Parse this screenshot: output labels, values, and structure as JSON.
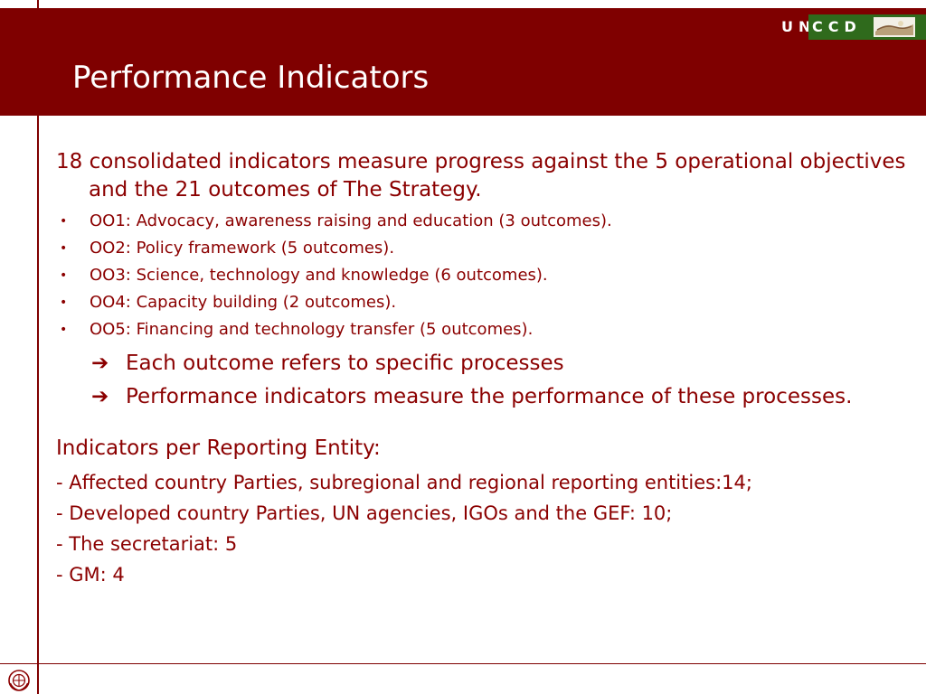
{
  "header": {
    "title": "Performance Indicators",
    "logo_un": "UN",
    "logo_ccd": "CCD"
  },
  "content": {
    "intro": "18 consolidated indicators measure progress against the 5 operational objectives and the 21 outcomes of The Strategy.",
    "bullet_glyph": "•",
    "bullets": [
      "OO1: Advocacy, awareness raising and education (3 outcomes).",
      "OO2: Policy framework (5 outcomes).",
      "OO3: Science, technology and knowledge (6 outcomes).",
      "OO4: Capacity building (2 outcomes).",
      "OO5: Financing and technology transfer (5 outcomes)."
    ],
    "arrow_glyph": "➔",
    "arrow_items": [
      "Each outcome refers to specific processes",
      "Performance indicators measure the performance of these processes."
    ],
    "subhead": "Indicators per Reporting Entity:",
    "entities": [
      "- Affected country Parties, subregional and regional reporting entities:14;",
      "- Developed country Parties, UN agencies, IGOs and the GEF: 10;",
      "- The secretariat: 5",
      "- GM: 4"
    ]
  },
  "colors": {
    "brand_red": "#7f0000",
    "text_red": "#8b0000",
    "logo_green": "#2f6a1c"
  },
  "icons": {
    "logo": "unccd-logo-icon",
    "emblem": "un-emblem-icon"
  }
}
